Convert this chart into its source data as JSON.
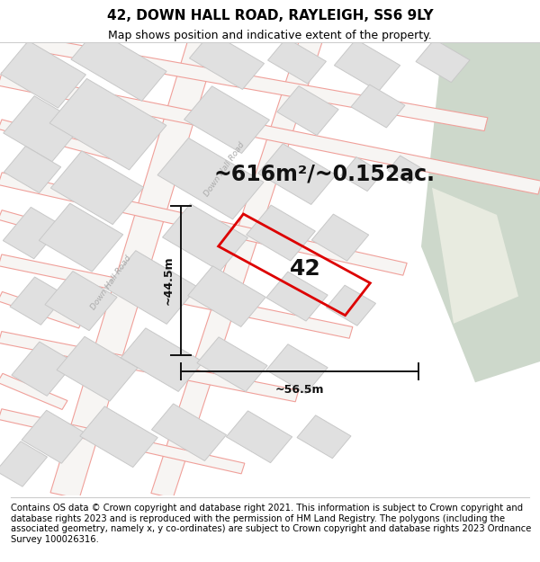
{
  "title_line1": "42, DOWN HALL ROAD, RAYLEIGH, SS6 9LY",
  "title_line2": "Map shows position and indicative extent of the property.",
  "footer_text": "Contains OS data © Crown copyright and database right 2021. This information is subject to Crown copyright and database rights 2023 and is reproduced with the permission of HM Land Registry. The polygons (including the associated geometry, namely x, y co-ordinates) are subject to Crown copyright and database rights 2023 Ordnance Survey 100026316.",
  "map_bg": "#f7f5f3",
  "road_outline_color": "#f0a09a",
  "building_fill": "#e0e0e0",
  "building_stroke": "#c8c8c8",
  "green_area_color": "#cdd8cb",
  "green_road_color": "#e8ebe0",
  "highlight_polygon_color": "#dd0000",
  "dimension_color": "#111111",
  "area_label": "~616m²/~0.152ac.",
  "dim_width_label": "~56.5m",
  "dim_height_label": "~44.5m",
  "road_label_color": "#aaaaaa",
  "title_fontsize": 11,
  "subtitle_fontsize": 9,
  "footer_fontsize": 7.2,
  "area_fontsize": 17,
  "num42_fontsize": 18
}
